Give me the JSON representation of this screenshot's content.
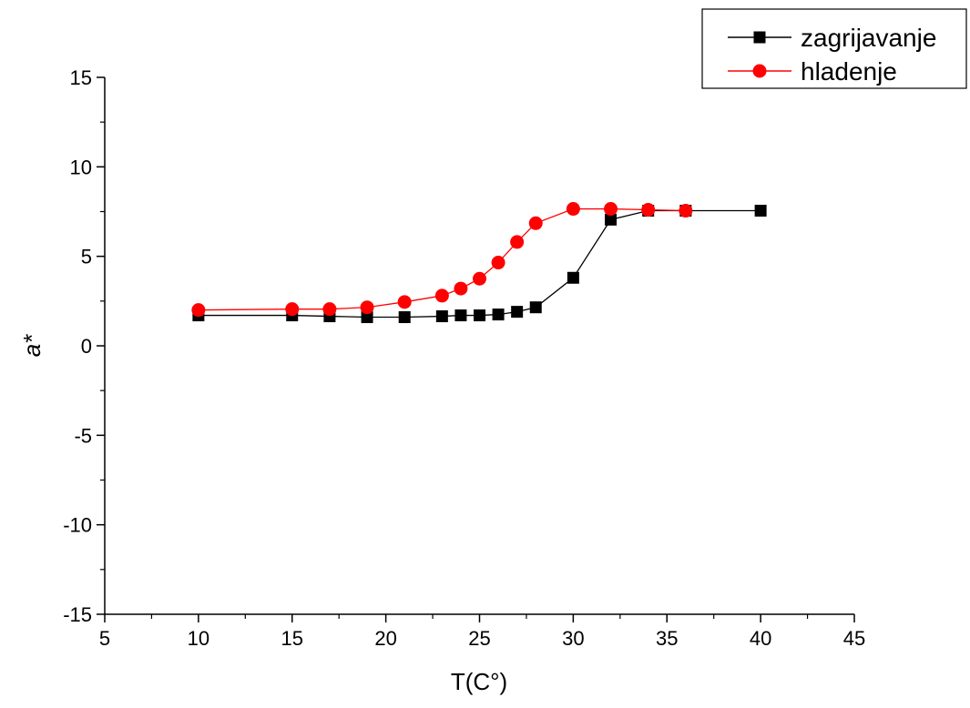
{
  "chart_data": {
    "type": "line",
    "xlabel": "T(C°)",
    "ylabel": "a*",
    "xlim": [
      5,
      45
    ],
    "ylim": [
      -15,
      15
    ],
    "xticks": [
      5,
      10,
      15,
      20,
      25,
      30,
      35,
      40,
      45
    ],
    "yticks": [
      -15,
      -10,
      -5,
      0,
      5,
      10,
      15
    ],
    "grid": false,
    "legend": "top-right",
    "series": [
      {
        "name": "zagrijavanje",
        "color": "#000000",
        "marker": "square",
        "x": [
          10,
          15,
          17,
          19,
          21,
          23,
          24,
          25,
          26,
          27,
          28,
          30,
          32,
          34,
          36,
          40
        ],
        "y": [
          1.7,
          1.7,
          1.65,
          1.6,
          1.6,
          1.65,
          1.7,
          1.7,
          1.75,
          1.9,
          2.15,
          3.8,
          7.05,
          7.55,
          7.55,
          7.55
        ]
      },
      {
        "name": "hladenje",
        "color": "#ff0000",
        "marker": "circle",
        "x": [
          10,
          15,
          17,
          19,
          21,
          23,
          24,
          25,
          26,
          27,
          28,
          30,
          32,
          34,
          36
        ],
        "y": [
          2.0,
          2.05,
          2.05,
          2.15,
          2.45,
          2.8,
          3.2,
          3.75,
          4.65,
          5.8,
          6.85,
          7.65,
          7.65,
          7.6,
          7.55
        ]
      }
    ]
  }
}
